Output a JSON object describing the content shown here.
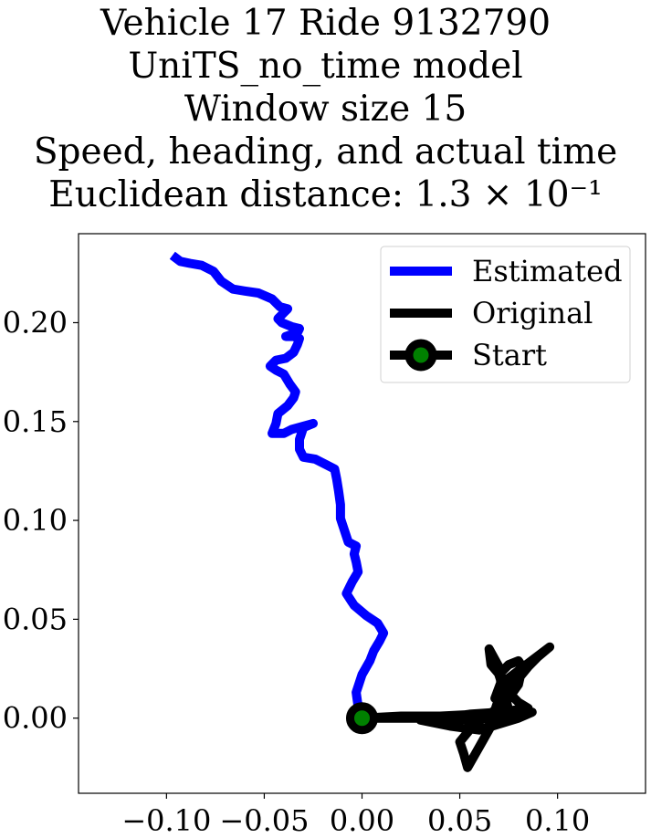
{
  "chart_data": {
    "type": "line",
    "title_lines": [
      "Vehicle 17 Ride 9132790",
      "UniTS_no_time model",
      "Window size 15",
      "Speed, heading, and actual time",
      "Euclidean distance: 1.3 × 10⁻¹"
    ],
    "xlabel": "",
    "ylabel": "",
    "xlim": [
      -0.145,
      0.145
    ],
    "ylim": [
      -0.038,
      0.245
    ],
    "xticks": [
      -0.1,
      -0.05,
      0.0,
      0.05,
      0.1
    ],
    "xtick_labels": [
      "−0.10",
      "−0.05",
      "0.00",
      "0.05",
      "0.10"
    ],
    "yticks": [
      0.0,
      0.05,
      0.1,
      0.15,
      0.2
    ],
    "ytick_labels": [
      "0.00",
      "0.05",
      "0.10",
      "0.15",
      "0.20"
    ],
    "grid": false,
    "legend_position": "top-right",
    "legend": [
      "Estimated",
      "Original",
      "Start"
    ],
    "series": [
      {
        "name": "Estimated",
        "color": "#0000ff",
        "points": [
          [
            0.0,
            0.0
          ],
          [
            -0.002,
            0.006
          ],
          [
            -0.003,
            0.013
          ],
          [
            0.0,
            0.022
          ],
          [
            0.004,
            0.029
          ],
          [
            0.006,
            0.034
          ],
          [
            0.009,
            0.039
          ],
          [
            0.011,
            0.043
          ],
          [
            0.008,
            0.048
          ],
          [
            0.002,
            0.052
          ],
          [
            -0.004,
            0.057
          ],
          [
            -0.008,
            0.063
          ],
          [
            -0.005,
            0.069
          ],
          [
            -0.002,
            0.074
          ],
          [
            -0.003,
            0.079
          ],
          [
            -0.004,
            0.083
          ],
          [
            -0.003,
            0.087
          ],
          [
            -0.007,
            0.089
          ],
          [
            -0.009,
            0.095
          ],
          [
            -0.011,
            0.101
          ],
          [
            -0.011,
            0.108
          ],
          [
            -0.012,
            0.115
          ],
          [
            -0.013,
            0.121
          ],
          [
            -0.014,
            0.126
          ],
          [
            -0.018,
            0.128
          ],
          [
            -0.024,
            0.131
          ],
          [
            -0.03,
            0.132
          ],
          [
            -0.032,
            0.136
          ],
          [
            -0.032,
            0.141
          ],
          [
            -0.03,
            0.147
          ],
          [
            -0.025,
            0.149
          ],
          [
            -0.036,
            0.146
          ],
          [
            -0.04,
            0.144
          ],
          [
            -0.046,
            0.144
          ],
          [
            -0.044,
            0.149
          ],
          [
            -0.043,
            0.154
          ],
          [
            -0.038,
            0.158
          ],
          [
            -0.035,
            0.162
          ],
          [
            -0.034,
            0.165
          ],
          [
            -0.037,
            0.169
          ],
          [
            -0.04,
            0.174
          ],
          [
            -0.044,
            0.176
          ],
          [
            -0.047,
            0.178
          ],
          [
            -0.044,
            0.181
          ],
          [
            -0.039,
            0.182
          ],
          [
            -0.035,
            0.185
          ],
          [
            -0.033,
            0.189
          ],
          [
            -0.032,
            0.192
          ],
          [
            -0.035,
            0.193
          ],
          [
            -0.039,
            0.193
          ],
          [
            -0.033,
            0.195
          ],
          [
            -0.032,
            0.197
          ],
          [
            -0.036,
            0.198
          ],
          [
            -0.041,
            0.2
          ],
          [
            -0.043,
            0.202
          ],
          [
            -0.04,
            0.205
          ],
          [
            -0.038,
            0.207
          ],
          [
            -0.042,
            0.208
          ],
          [
            -0.046,
            0.212
          ],
          [
            -0.053,
            0.215
          ],
          [
            -0.06,
            0.216
          ],
          [
            -0.066,
            0.217
          ],
          [
            -0.072,
            0.221
          ],
          [
            -0.076,
            0.226
          ],
          [
            -0.082,
            0.229
          ],
          [
            -0.088,
            0.23
          ],
          [
            -0.093,
            0.231
          ],
          [
            -0.097,
            0.234
          ]
        ]
      },
      {
        "name": "Original",
        "color": "#000000",
        "points": [
          [
            0.0,
            0.0
          ],
          [
            0.02,
            0.001
          ],
          [
            0.04,
            0.001
          ],
          [
            0.06,
            0.002
          ],
          [
            0.075,
            0.004
          ],
          [
            0.073,
            0.012
          ],
          [
            0.072,
            0.02
          ],
          [
            0.066,
            0.027
          ],
          [
            0.065,
            0.035
          ],
          [
            0.07,
            0.026
          ],
          [
            0.071,
            0.018
          ],
          [
            0.068,
            0.01
          ],
          [
            0.075,
            0.014
          ],
          [
            0.08,
            0.02
          ],
          [
            0.085,
            0.026
          ],
          [
            0.09,
            0.031
          ],
          [
            0.096,
            0.036
          ],
          [
            0.088,
            0.03
          ],
          [
            0.08,
            0.024
          ],
          [
            0.072,
            0.018
          ],
          [
            0.07,
            0.01
          ],
          [
            0.068,
            0.004
          ],
          [
            0.062,
            0.0
          ],
          [
            0.055,
            -0.006
          ],
          [
            0.05,
            -0.012
          ],
          [
            0.052,
            -0.018
          ],
          [
            0.054,
            -0.025
          ],
          [
            0.058,
            -0.018
          ],
          [
            0.062,
            -0.011
          ],
          [
            0.066,
            -0.004
          ],
          [
            0.07,
            0.003
          ],
          [
            0.075,
            0.01
          ],
          [
            0.08,
            0.017
          ],
          [
            0.082,
            0.026
          ],
          [
            0.08,
            0.029
          ],
          [
            0.075,
            0.027
          ],
          [
            0.07,
            0.022
          ],
          [
            0.072,
            0.016
          ],
          [
            0.076,
            0.012
          ],
          [
            0.08,
            0.008
          ],
          [
            0.085,
            0.005
          ],
          [
            0.07,
            0.003
          ],
          [
            0.055,
            0.002
          ],
          [
            0.04,
            0.0
          ],
          [
            0.03,
            -0.001
          ],
          [
            0.045,
            -0.004
          ],
          [
            0.06,
            -0.006
          ],
          [
            0.07,
            -0.003
          ],
          [
            0.08,
            0.0
          ],
          [
            0.087,
            0.003
          ],
          [
            0.07,
            0.0
          ],
          [
            0.05,
            -0.001
          ],
          [
            0.03,
            0.0
          ],
          [
            0.01,
            0.0
          ],
          [
            0.0,
            0.0
          ]
        ]
      }
    ],
    "start_point": {
      "name": "Start",
      "x": 0.0,
      "y": 0.0,
      "fill_color": "#008000",
      "edge_color": "#000000"
    }
  }
}
